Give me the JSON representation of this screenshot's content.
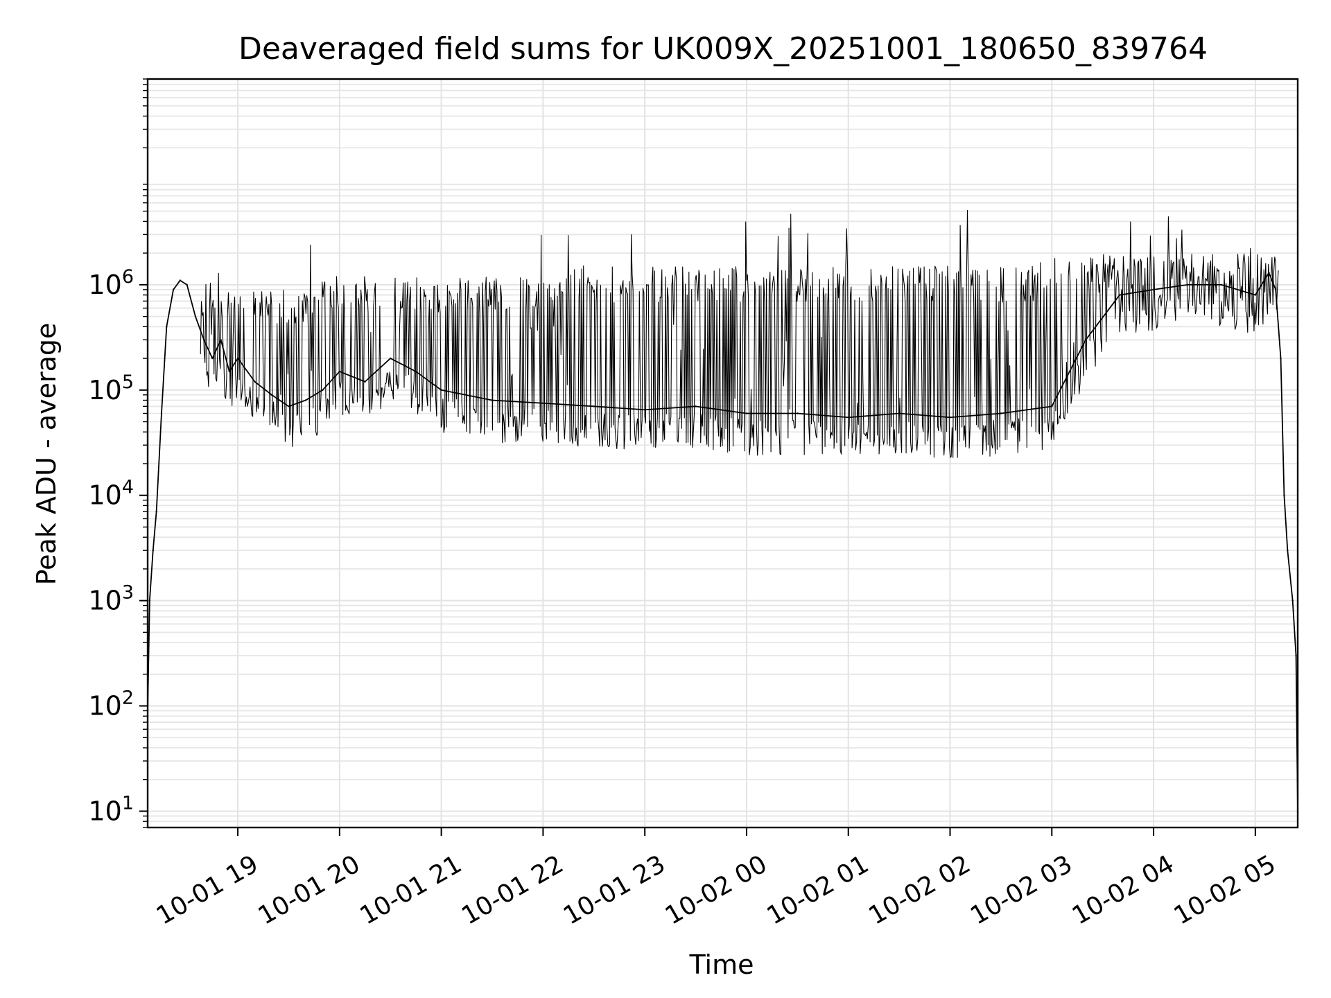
{
  "chart_data": {
    "type": "line",
    "title": "Deaveraged field sums for UK009X_20251001_180650_839764",
    "xlabel": "Time",
    "ylabel": "Peak ADU - average",
    "x_range": [
      "2025-10-01T18:06:50",
      "2025-10-02T05:25:00"
    ],
    "ylim": [
      7,
      90000000
    ],
    "yscale": "log",
    "grid": true,
    "x_tick_labels": [
      "10-01 19",
      "10-01 20",
      "10-01 21",
      "10-01 22",
      "10-01 23",
      "10-02 00",
      "10-02 01",
      "10-02 02",
      "10-02 03",
      "10-02 04",
      "10-02 05"
    ],
    "x_ticks": [
      "2025-10-01T19:00",
      "2025-10-01T20:00",
      "2025-10-01T21:00",
      "2025-10-01T22:00",
      "2025-10-01T23:00",
      "2025-10-02T00:00",
      "2025-10-02T01:00",
      "2025-10-02T02:00",
      "2025-10-02T03:00",
      "2025-10-02T04:00",
      "2025-10-02T05:00"
    ],
    "y_tick_labels": [
      {
        "value": 10,
        "base": "10",
        "exp": "1"
      },
      {
        "value": 100,
        "base": "10",
        "exp": "2"
      },
      {
        "value": 1000,
        "base": "10",
        "exp": "3"
      },
      {
        "value": 10000,
        "base": "10",
        "exp": "4"
      },
      {
        "value": 100000,
        "base": "10",
        "exp": "5"
      },
      {
        "value": 1000000,
        "base": "10",
        "exp": "6"
      }
    ],
    "series": [
      {
        "color": "#000000",
        "points": [
          [
            "2025-10-01T18:06:50",
            90
          ],
          [
            "2025-10-01T18:08:00",
            1000
          ],
          [
            "2025-10-01T18:10:00",
            3000
          ],
          [
            "2025-10-01T18:12:00",
            7000
          ],
          [
            "2025-10-01T18:15:00",
            60000
          ],
          [
            "2025-10-01T18:18:00",
            400000
          ],
          [
            "2025-10-01T18:22:00",
            900000
          ],
          [
            "2025-10-01T18:26:00",
            1100000
          ],
          [
            "2025-10-01T18:30:00",
            1000000
          ],
          [
            "2025-10-01T18:35:00",
            500000
          ],
          [
            "2025-10-01T18:40:00",
            300000
          ],
          [
            "2025-10-01T18:45:00",
            200000
          ],
          [
            "2025-10-01T18:50:00",
            300000
          ],
          [
            "2025-10-01T18:55:00",
            150000
          ],
          [
            "2025-10-01T19:00:00",
            200000
          ],
          [
            "2025-10-01T19:10:00",
            120000
          ],
          [
            "2025-10-01T19:20:00",
            90000
          ],
          [
            "2025-10-01T19:30:00",
            70000
          ],
          [
            "2025-10-01T19:40:00",
            80000
          ],
          [
            "2025-10-01T19:50:00",
            100000
          ],
          [
            "2025-10-01T20:00:00",
            150000
          ],
          [
            "2025-10-01T20:15:00",
            120000
          ],
          [
            "2025-10-01T20:30:00",
            200000
          ],
          [
            "2025-10-01T20:45:00",
            150000
          ],
          [
            "2025-10-01T21:00:00",
            100000
          ],
          [
            "2025-10-01T21:30:00",
            80000
          ],
          [
            "2025-10-01T22:00:00",
            75000
          ],
          [
            "2025-10-01T22:30:00",
            70000
          ],
          [
            "2025-10-01T23:00:00",
            65000
          ],
          [
            "2025-10-01T23:30:00",
            70000
          ],
          [
            "2025-10-02T00:00:00",
            60000
          ],
          [
            "2025-10-02T00:30:00",
            60000
          ],
          [
            "2025-10-02T01:00:00",
            55000
          ],
          [
            "2025-10-02T01:30:00",
            60000
          ],
          [
            "2025-10-02T02:00:00",
            55000
          ],
          [
            "2025-10-02T02:30:00",
            60000
          ],
          [
            "2025-10-02T03:00:00",
            70000
          ],
          [
            "2025-10-02T03:20:00",
            300000
          ],
          [
            "2025-10-02T03:40:00",
            800000
          ],
          [
            "2025-10-02T04:00:00",
            900000
          ],
          [
            "2025-10-02T04:20:00",
            1000000
          ],
          [
            "2025-10-02T04:40:00",
            1000000
          ],
          [
            "2025-10-02T05:00:00",
            800000
          ],
          [
            "2025-10-02T05:08:00",
            1300000
          ],
          [
            "2025-10-02T05:12:00",
            900000
          ],
          [
            "2025-10-02T05:15:00",
            200000
          ],
          [
            "2025-10-02T05:17:00",
            10000
          ],
          [
            "2025-10-02T05:19:00",
            3000
          ],
          [
            "2025-10-02T05:22:00",
            1000
          ],
          [
            "2025-10-02T05:24:00",
            300
          ],
          [
            "2025-10-02T05:25:00",
            10
          ]
        ]
      }
    ]
  }
}
